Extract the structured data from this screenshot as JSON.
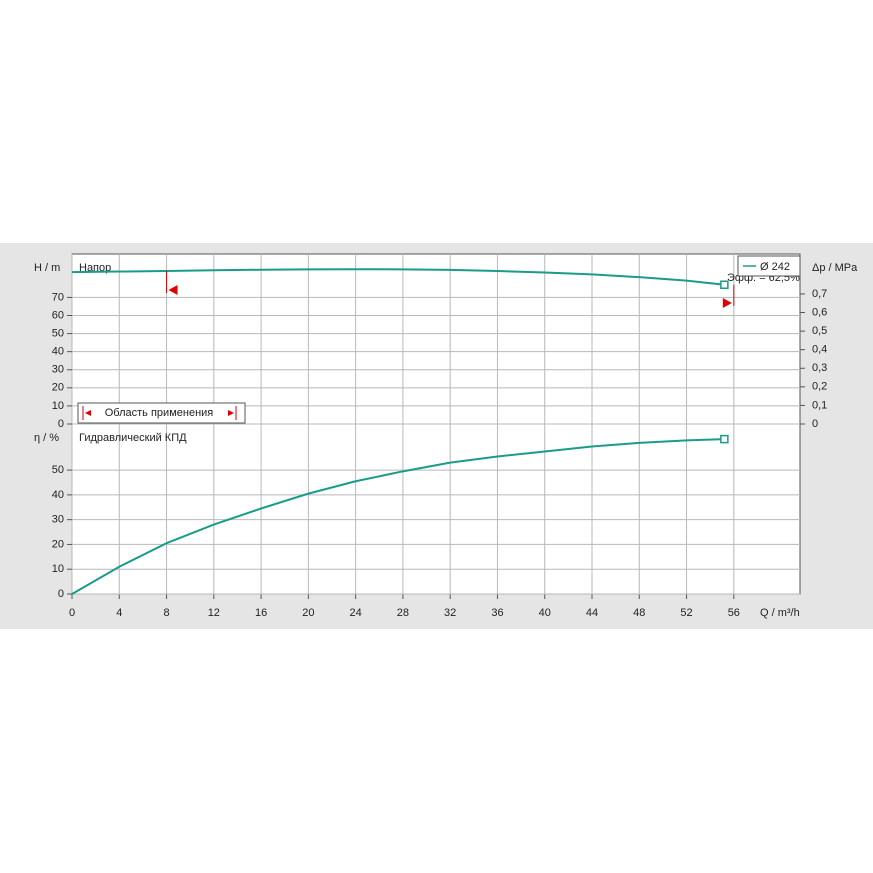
{
  "chart_data": [
    {
      "type": "line",
      "title": "Напор",
      "ylabel": "H / m",
      "y2label": "Δp / MPa",
      "x": [
        0,
        4,
        8,
        12,
        16,
        20,
        24,
        28,
        32,
        36,
        40,
        44,
        48,
        52,
        55.2
      ],
      "series": [
        {
          "name": "Ø 242",
          "color": "#1a9c8a",
          "values": [
            84,
            84.3,
            84.6,
            85,
            85.3,
            85.5,
            85.6,
            85.5,
            85.2,
            84.6,
            83.8,
            82.7,
            81.2,
            79.3,
            77
          ]
        }
      ],
      "xlim": [
        0,
        61.6
      ],
      "ylim": [
        0,
        94
      ],
      "yticks": [
        0,
        10,
        20,
        30,
        40,
        50,
        60,
        70
      ],
      "y2lim": [
        0,
        0.915
      ],
      "y2ticks": [
        {
          "value": 0,
          "label": "0"
        },
        {
          "value": 0.1,
          "label": "0,1"
        },
        {
          "value": 0.2,
          "label": "0,2"
        },
        {
          "value": 0.3,
          "label": "0,3"
        },
        {
          "value": 0.4,
          "label": "0,4"
        },
        {
          "value": 0.5,
          "label": "0,5"
        },
        {
          "value": 0.6,
          "label": "0,6"
        },
        {
          "value": 0.7,
          "label": "0,7"
        }
      ],
      "application_range": [
        8,
        56
      ],
      "application_range_label": "Область применения",
      "annotation": "Эфф. = 62,5%",
      "grid": true
    },
    {
      "type": "line",
      "title": "Гидравлический КПД",
      "ylabel": "η / %",
      "xlabel": "Q / m³/h",
      "x": [
        0,
        4,
        8,
        12,
        16,
        20,
        24,
        28,
        32,
        36,
        40,
        44,
        48,
        52,
        55.2
      ],
      "series": [
        {
          "color": "#1a9c8a",
          "values": [
            0,
            11,
            20.5,
            28,
            34.5,
            40.5,
            45.5,
            49.5,
            53,
            55.5,
            57.5,
            59.5,
            61,
            62,
            62.5
          ]
        }
      ],
      "xlim": [
        0,
        61.6
      ],
      "ylim": [
        0,
        68.6
      ],
      "xticks": [
        0,
        4,
        8,
        12,
        16,
        20,
        24,
        28,
        32,
        36,
        40,
        44,
        48,
        52,
        56
      ],
      "yticks": [
        0,
        10,
        20,
        30,
        40,
        50
      ],
      "grid": true
    }
  ]
}
